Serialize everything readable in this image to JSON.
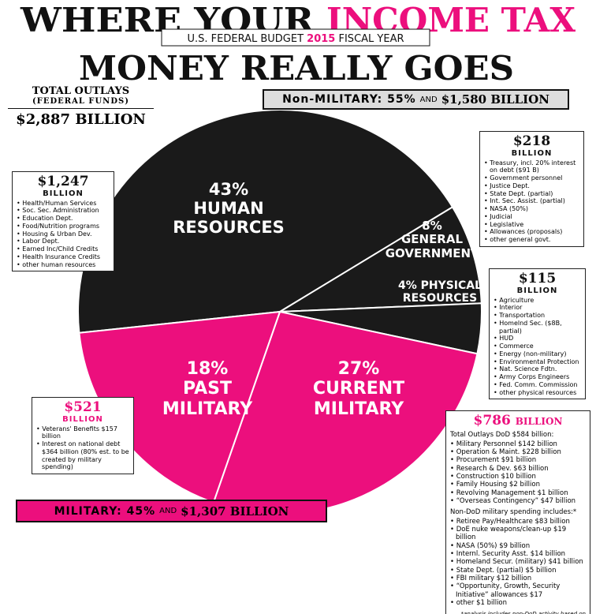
{
  "chart_data": {
    "type": "pie",
    "title_parts": [
      "WHERE YOUR",
      "INCOME TAX",
      "MONEY REALLY GOES"
    ],
    "subtitle_parts": [
      "U.S. FEDERAL BUDGET",
      "2015",
      "FISCAL YEAR"
    ],
    "categories": [
      "HUMAN RESOURCES",
      "GENERAL GOVERNMENT",
      "PHYSICAL RESOURCES",
      "CURRENT MILITARY",
      "PAST MILITARY"
    ],
    "values": [
      43,
      8,
      4,
      27,
      18
    ],
    "value_labels": [
      "43%",
      "8%",
      "4%",
      "27%",
      "18%"
    ],
    "colors": [
      "#1a1a1a",
      "#1a1a1a",
      "#1a1a1a",
      "#ec0f7d",
      "#ec0f7d"
    ]
  },
  "total_outlays": {
    "label": "TOTAL OUTLAYS",
    "note": "(FEDERAL FUNDS)",
    "amount": "$2,887 BILLION"
  },
  "non_military_banner": {
    "label": "Non-MILITARY: 55%",
    "joiner": "AND",
    "amount": "$1,580 BILLION"
  },
  "military_banner": {
    "label": "MILITARY: 45%",
    "joiner": "AND",
    "amount": "$1,307 BILLION"
  },
  "boxes": {
    "human_resources": {
      "amount": "$1,247",
      "unit": "BILLION",
      "items": [
        "Health/Human Services",
        "Soc. Sec. Administration",
        "Education Dept.",
        "Food/Nutrition programs",
        "Housing & Urban Dev.",
        "Labor Dept.",
        "Earned Inc/Child Credits",
        "Health Insurance Credits",
        "other human resources"
      ]
    },
    "general_government": {
      "amount": "$218",
      "unit": "BILLION",
      "items": [
        "Treasury, incl. 20% interest on debt ($91 B)",
        "Government personnel",
        "Justice Dept.",
        "State Dept. (partial)",
        "Int. Sec. Assist. (partial)",
        "NASA (50%)",
        "Judicial",
        "Legislative",
        "Allowances (proposals)",
        "other general govt."
      ]
    },
    "physical_resources": {
      "amount": "$115",
      "unit": "BILLION",
      "items": [
        "Agriculture",
        "Interior",
        "Transportation",
        "Homelnd Sec. ($8B, partial)",
        "HUD",
        "Commerce",
        "Energy (non-military)",
        "Environmental Protection",
        "Nat. Science Fdtn.",
        "Army Corps Engineers",
        "Fed. Comm. Commission",
        "other physical resources"
      ]
    },
    "past_military": {
      "amount": "$521",
      "unit": "BILLION",
      "items": [
        "Veterans' Benefits $157 billion",
        "Interest on national debt $364 billion (80% est. to be created by military spending)"
      ]
    },
    "current_military": {
      "amount": "$786",
      "unit": "BILLION",
      "heading": "Total Outlays DoD $584 billion:",
      "items": [
        "Military Personnel $142 billion",
        "Operation & Maint. $228 billion",
        "Procurement $91 billion",
        "Research & Dev. $63 billion",
        "Construction $10 billion",
        "Family Housing $2 billion",
        "Revolving Management $1 billion",
        "“Overseas Contingency” $47 billion"
      ],
      "heading2": "Non-DoD military spending includes:*",
      "items2": [
        "Retiree Pay/Healthcare $83 billion",
        "DoE nuke weapons/clean-up $19 billion",
        "NASA (50%) $9 billion",
        "Internl. Security Asst. $14 billion",
        "Homeland Secur. (military) $41 billion",
        "State Dept. (partial) $5 billion",
        "FBI military $12 billion",
        "“Opportunity, Growth, Security Initiative” allowances $17",
        "other $1 billion"
      ],
      "footnote": "*analysis includes non-DoD activity based on coding and the military nature of activities, such as armed border control, DoD space flights, etc."
    }
  }
}
